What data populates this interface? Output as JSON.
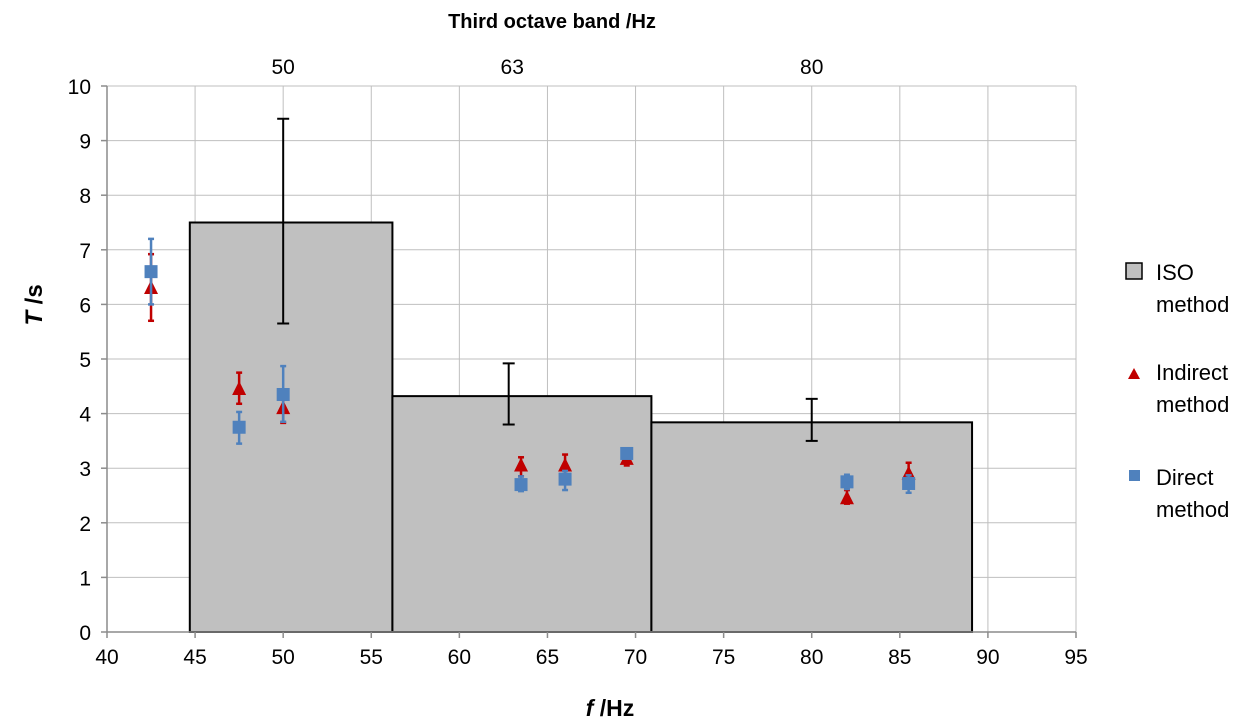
{
  "chart_data": {
    "type": "bar",
    "top_axis_title": "Third octave band  /Hz",
    "top_ticks": [
      {
        "label": "50",
        "x": 50
      },
      {
        "label": "63",
        "x": 63
      },
      {
        "label": "80",
        "x": 80
      }
    ],
    "xlabel_symbol": "f",
    "xlabel_unit": " /Hz",
    "ylabel_symbol": "T",
    "ylabel_unit": " /s",
    "xlim": [
      40,
      95
    ],
    "ylim": [
      0,
      10
    ],
    "x_ticks": [
      40,
      45,
      50,
      55,
      60,
      65,
      70,
      75,
      80,
      85,
      90,
      95
    ],
    "y_ticks": [
      0,
      1,
      2,
      3,
      4,
      5,
      6,
      7,
      8,
      9,
      10
    ],
    "grid": true,
    "legend_position": "right",
    "legend": [
      {
        "key": "iso",
        "line1": "ISO",
        "line2": "method",
        "marker": "square-outline",
        "color": "#c0c0c0"
      },
      {
        "key": "indirect",
        "line1": "Indirect",
        "line2": "method",
        "marker": "triangle",
        "color": "#c00000"
      },
      {
        "key": "direct",
        "line1": "Direct",
        "line2": "method",
        "marker": "square",
        "color": "#4f81bd"
      }
    ],
    "iso_bars": [
      {
        "band": "50",
        "x_start": 44.7,
        "x_end": 56.2,
        "value": 7.5,
        "err_low": 5.65,
        "err_high": 9.4,
        "err_x": 50
      },
      {
        "band": "63",
        "x_start": 56.2,
        "x_end": 70.9,
        "value": 4.32,
        "err_low": 3.8,
        "err_high": 4.92,
        "err_x": 62.8
      },
      {
        "band": "80",
        "x_start": 70.9,
        "x_end": 89.1,
        "value": 3.84,
        "err_low": 3.5,
        "err_high": 4.27,
        "err_x": 80
      }
    ],
    "series": [
      {
        "key": "indirect",
        "points": [
          {
            "x": 42.5,
            "y": 6.3,
            "low": 5.7,
            "high": 6.92
          },
          {
            "x": 47.5,
            "y": 4.45,
            "low": 4.18,
            "high": 4.75
          },
          {
            "x": 50.0,
            "y": 4.1,
            "low": 3.83,
            "high": 4.4
          },
          {
            "x": 63.5,
            "y": 3.05,
            "low": 2.85,
            "high": 3.2
          },
          {
            "x": 66.0,
            "y": 3.05,
            "low": 2.85,
            "high": 3.25
          },
          {
            "x": 69.5,
            "y": 3.17,
            "low": 3.05,
            "high": 3.3
          },
          {
            "x": 82.0,
            "y": 2.45,
            "low": 2.35,
            "high": 2.6
          },
          {
            "x": 85.5,
            "y": 2.9,
            "low": 2.7,
            "high": 3.1
          }
        ]
      },
      {
        "key": "direct",
        "points": [
          {
            "x": 42.5,
            "y": 6.6,
            "low": 6.0,
            "high": 7.2
          },
          {
            "x": 47.5,
            "y": 3.75,
            "low": 3.45,
            "high": 4.03
          },
          {
            "x": 50.0,
            "y": 4.35,
            "low": 3.85,
            "high": 4.87
          },
          {
            "x": 63.5,
            "y": 2.7,
            "low": 2.58,
            "high": 2.85
          },
          {
            "x": 66.0,
            "y": 2.8,
            "low": 2.6,
            "high": 2.95
          },
          {
            "x": 69.5,
            "y": 3.27,
            "low": 3.18,
            "high": 3.35
          },
          {
            "x": 82.0,
            "y": 2.75,
            "low": 2.62,
            "high": 2.88
          },
          {
            "x": 85.5,
            "y": 2.72,
            "low": 2.55,
            "high": 2.87
          }
        ]
      }
    ]
  }
}
